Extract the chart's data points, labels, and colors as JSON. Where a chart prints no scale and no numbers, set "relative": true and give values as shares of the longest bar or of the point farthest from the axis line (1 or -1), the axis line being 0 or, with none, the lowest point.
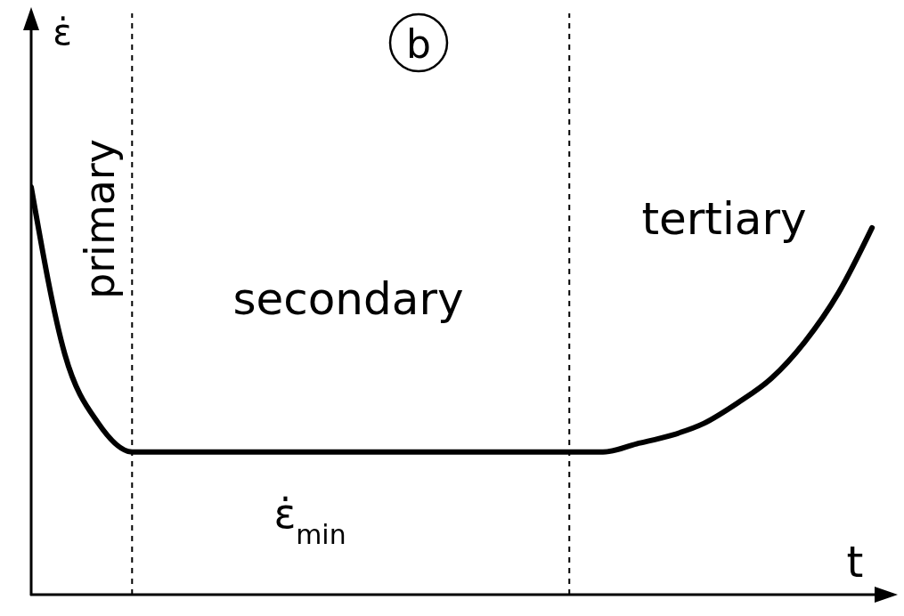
{
  "chart_data": {
    "type": "line",
    "title": "b",
    "xlabel": "t",
    "ylabel": "ε̇",
    "relative": true,
    "categories": [
      null,
      null,
      null,
      null,
      null,
      null,
      null,
      null,
      null,
      null,
      null,
      null,
      null,
      null,
      null,
      null,
      null,
      null,
      null,
      null,
      null,
      null,
      null,
      null,
      null,
      null
    ],
    "series": [
      {
        "color": "#000000",
        "values": [
          1.0,
          0.59,
          0.42,
          0.35,
          0.35,
          0.35,
          0.35,
          0.35,
          0.35,
          0.35,
          0.35,
          0.35,
          0.35,
          0.35,
          0.35,
          0.35,
          0.35,
          0.35,
          0.37,
          0.39,
          0.42,
          0.47,
          0.53,
          0.62,
          0.74,
          0.9
        ]
      }
    ],
    "annotations": [
      "primary",
      "secondary",
      "tertiary",
      "ε̇$_{min}$"
    ],
    "marker": "none",
    "line_style": "solid"
  }
}
